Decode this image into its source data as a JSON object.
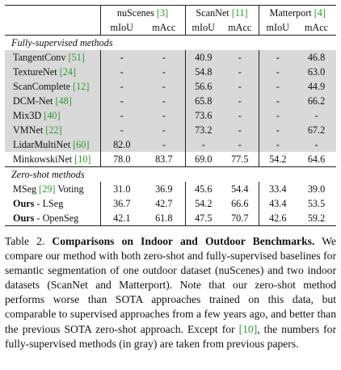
{
  "header": {
    "datasets": [
      {
        "name": "nuScenes",
        "ref": "[3]"
      },
      {
        "name": "ScanNet",
        "ref": "[11]"
      },
      {
        "name": "Matterport",
        "ref": "[4]"
      }
    ],
    "metrics": [
      "mIoU",
      "mAcc",
      "mIoU",
      "mAcc",
      "mIoU",
      "mAcc"
    ]
  },
  "sections": {
    "supervised": "Fully-supervised methods",
    "zeroshot": "Zero-shot methods"
  },
  "supervised_rows": [
    {
      "name": "TangentConv",
      "ref": "[51]",
      "vals": [
        "-",
        "-",
        "40.9",
        "-",
        "-",
        "46.8"
      ],
      "bold": [
        false,
        false,
        false,
        false,
        false,
        false
      ]
    },
    {
      "name": "TextureNet",
      "ref": "[24]",
      "vals": [
        "-",
        "-",
        "54.8",
        "-",
        "-",
        "63.0"
      ],
      "bold": [
        false,
        false,
        false,
        false,
        false,
        false
      ]
    },
    {
      "name": "ScanComplete",
      "ref": "[12]",
      "vals": [
        "-",
        "-",
        "56.6",
        "-",
        "-",
        "44.9"
      ],
      "bold": [
        false,
        false,
        false,
        false,
        false,
        false
      ]
    },
    {
      "name": "DCM-Net",
      "ref": "[48]",
      "vals": [
        "-",
        "-",
        "65.8",
        "-",
        "-",
        "66.2"
      ],
      "bold": [
        false,
        false,
        false,
        false,
        false,
        false
      ]
    },
    {
      "name": "Mix3D",
      "ref": "[40]",
      "vals": [
        "-",
        "-",
        "73.6",
        "-",
        "-",
        "-"
      ],
      "bold": [
        false,
        false,
        true,
        false,
        false,
        false
      ]
    },
    {
      "name": "VMNet",
      "ref": "[22]",
      "vals": [
        "-",
        "-",
        "73.2",
        "-",
        "-",
        "67.2"
      ],
      "bold": [
        false,
        false,
        false,
        false,
        false,
        true
      ]
    },
    {
      "name": "LidarMultiNet",
      "ref": "[60]",
      "vals": [
        "82.0",
        "-",
        "-",
        "-",
        "-",
        "-"
      ],
      "bold": [
        true,
        false,
        false,
        false,
        false,
        false
      ]
    }
  ],
  "minkowski_row": {
    "name": "MinkowskiNet",
    "ref": "[10]",
    "vals": [
      "78.0",
      "83.7",
      "69.0",
      "77.5",
      "54.2",
      "64.6"
    ]
  },
  "zeroshot_rows": [
    {
      "name": "MSeg",
      "ref": "[29]",
      "suffix": "Voting",
      "name_bold": false,
      "vals": [
        "31.0",
        "36.9",
        "45.6",
        "54.4",
        "33.4",
        "39.0"
      ],
      "bold": [
        false,
        false,
        false,
        false,
        false,
        false
      ]
    },
    {
      "name": "Ours",
      "ref": "",
      "suffix": "- LSeg",
      "name_bold": true,
      "vals": [
        "36.7",
        "42.7",
        "54.2",
        "66.6",
        "43.4",
        "53.5"
      ],
      "bold": [
        false,
        false,
        true,
        false,
        true,
        false
      ]
    },
    {
      "name": "Ours",
      "ref": "",
      "suffix": "- OpenSeg",
      "name_bold": true,
      "vals": [
        "42.1",
        "61.8",
        "47.5",
        "70.7",
        "42.6",
        "59.2"
      ],
      "bold": [
        true,
        true,
        false,
        true,
        false,
        true
      ]
    }
  ],
  "caption": {
    "label": "Table 2.",
    "title": "Comparisons on Indoor and Outdoor Benchmarks.",
    "text_a": "We compare our method with both zero-shot and fully-supervised baselines for semantic segmentation of one outdoor dataset (nuScenes) and two indoor datasets (ScanNet and Matterport). Note that our zero-shot method performs worse than SOTA approaches trained on this data, but comparable to supervised approaches from a few years ago, and better than the previous SOTA zero-shot approach. Except for",
    "ref": "[10]",
    "text_b": ", the numbers for fully-supervised methods (in gray) are taken from previous papers."
  },
  "colors": {
    "gray_row": "#d9d9d9",
    "citation": "#2a9d2a"
  }
}
